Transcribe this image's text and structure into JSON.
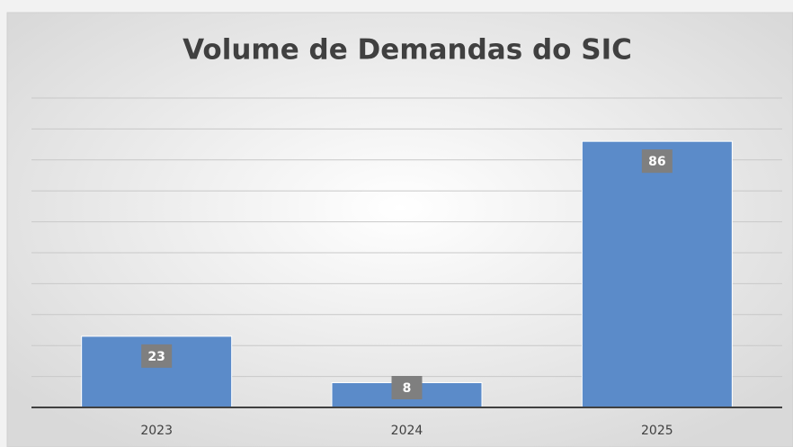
{
  "chart_data": {
    "type": "bar",
    "title": "Volume de Demandas do SIC",
    "categories": [
      "2023",
      "2024",
      "2025"
    ],
    "values": [
      23,
      8,
      86
    ],
    "color": "#5b8bc9",
    "ylim": [
      0,
      100
    ],
    "yticks": [
      0,
      10,
      20,
      30,
      40,
      50,
      60,
      70,
      80,
      90,
      100
    ],
    "grid": true
  }
}
